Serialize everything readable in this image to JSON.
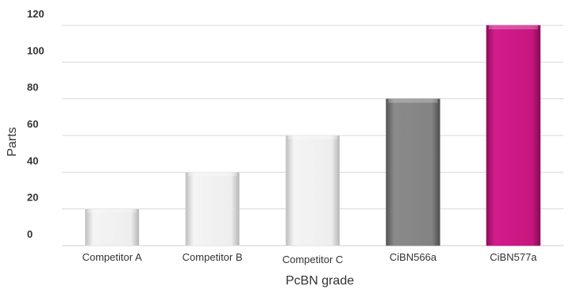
{
  "chart_data": {
    "type": "bar",
    "categories": [
      "Competitor A",
      "Competitor B",
      "Competitor C",
      "CiBN566a",
      "CiBN577a"
    ],
    "values": [
      20,
      40,
      60,
      80,
      120
    ],
    "colors": [
      "#e5e5e5",
      "#e5e5e5",
      "#e5e5e5",
      "#7b7b7b",
      "#c0177f"
    ],
    "xlabel": "PcBN grade",
    "ylabel": "Parts",
    "ylim": [
      0,
      120
    ],
    "yticks": [
      0,
      20,
      40,
      60,
      80,
      100,
      120
    ],
    "grid": true
  }
}
